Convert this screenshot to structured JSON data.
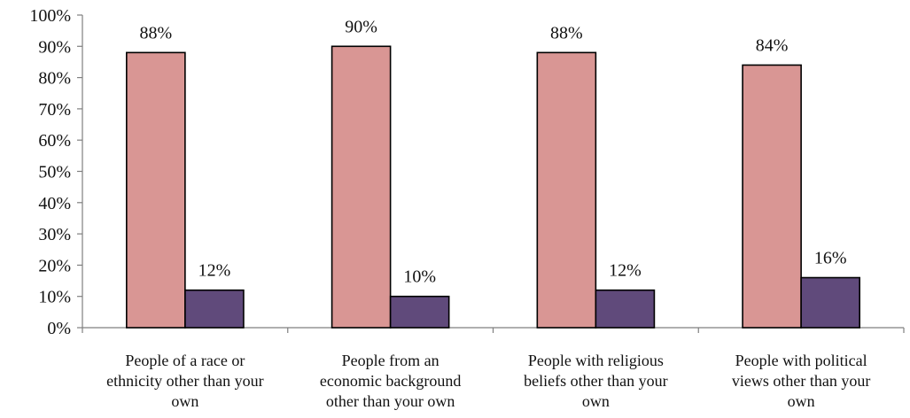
{
  "chart_data": {
    "type": "bar",
    "categories": [
      "People of a race or ethnicity other than your own",
      "People from an economic background other than your own",
      "People with religious beliefs other than your own",
      "People with political views other than your own"
    ],
    "category_label_lines": [
      [
        "People of a race or",
        "ethnicity other than your",
        "own"
      ],
      [
        "People from an",
        "economic background",
        "other than your own"
      ],
      [
        "People with religious",
        "beliefs other than your",
        "own"
      ],
      [
        "People with political",
        "views other than your",
        "own"
      ]
    ],
    "series": [
      {
        "values": [
          88,
          90,
          88,
          84
        ],
        "labels": [
          "88%",
          "90%",
          "88%",
          "84%"
        ],
        "color": "#D99694"
      },
      {
        "values": [
          12,
          10,
          12,
          16
        ],
        "labels": [
          "12%",
          "10%",
          "12%",
          "16%"
        ],
        "color": "#604A7B"
      }
    ],
    "y_ticks": [
      "0%",
      "10%",
      "20%",
      "30%",
      "40%",
      "50%",
      "60%",
      "70%",
      "80%",
      "90%",
      "100%"
    ],
    "ylim": [
      0,
      100
    ],
    "grid": false,
    "legend": "none"
  }
}
